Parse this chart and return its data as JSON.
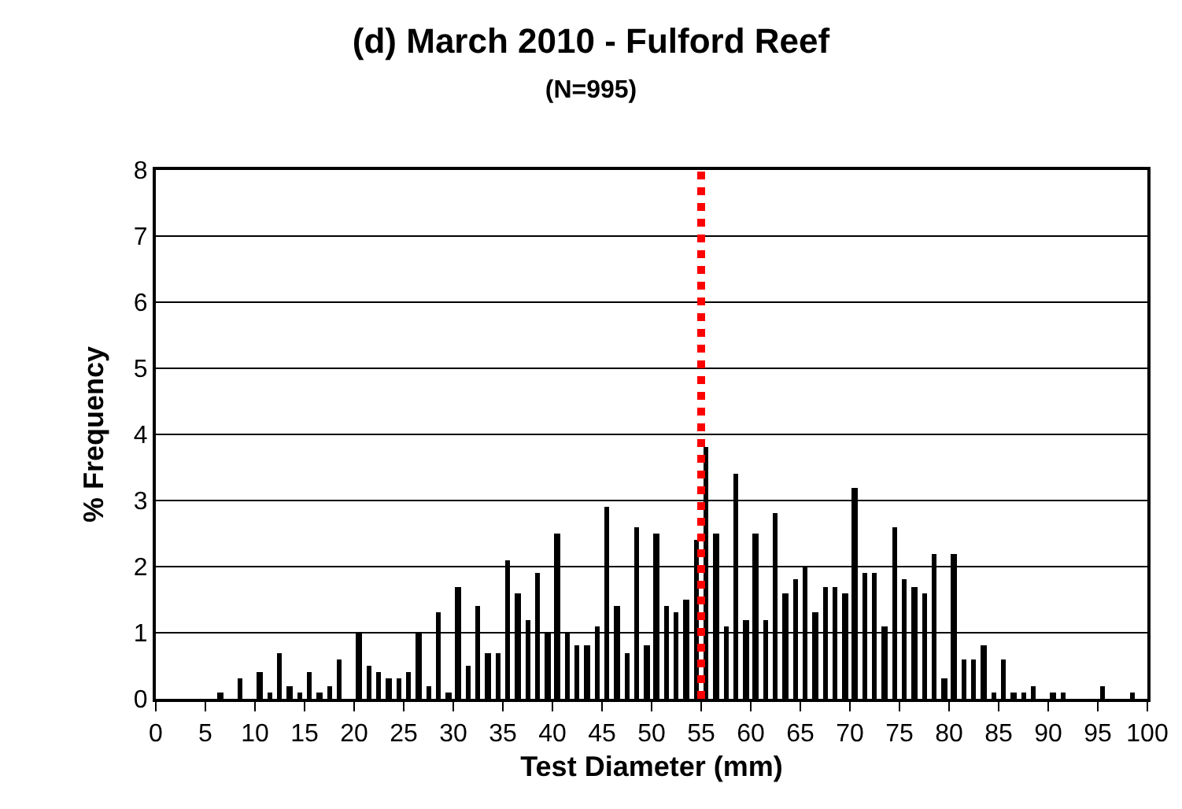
{
  "chart_data": {
    "type": "histogram",
    "title": "(d) March 2010 - Fulford Reef",
    "subtitle": "(N=995)",
    "xlabel": "Test Diameter (mm)",
    "ylabel": "% Frequency",
    "bins": [
      0,
      1,
      2,
      3,
      4,
      5,
      6,
      7,
      8,
      9,
      10,
      11,
      12,
      13,
      14,
      15,
      16,
      17,
      18,
      19,
      20,
      21,
      22,
      23,
      24,
      25,
      26,
      27,
      28,
      29,
      30,
      31,
      32,
      33,
      34,
      35,
      36,
      37,
      38,
      39,
      40,
      41,
      42,
      43,
      44,
      45,
      46,
      47,
      48,
      49,
      50,
      51,
      52,
      53,
      54,
      55,
      56,
      57,
      58,
      59,
      60,
      61,
      62,
      63,
      64,
      65,
      66,
      67,
      68,
      69,
      70,
      71,
      72,
      73,
      74,
      75,
      76,
      77,
      78,
      79,
      80,
      81,
      82,
      83,
      84,
      85,
      86,
      87,
      88,
      89,
      90,
      91,
      92,
      93,
      94,
      95,
      96,
      97,
      98,
      99,
      100
    ],
    "values": [
      0,
      0,
      0,
      0,
      0,
      0,
      0.1,
      0,
      0.3,
      0,
      0.4,
      0.1,
      0.7,
      0.2,
      0.1,
      0.4,
      0.1,
      0.2,
      0.6,
      0,
      1.0,
      0.5,
      0.4,
      0.3,
      0.3,
      0.4,
      1.0,
      0.2,
      1.3,
      0.1,
      1.7,
      0.5,
      1.4,
      0.7,
      0.7,
      2.1,
      1.6,
      1.2,
      1.9,
      1.0,
      2.5,
      1.0,
      0.8,
      0.8,
      1.1,
      2.9,
      1.4,
      0.7,
      2.6,
      0.8,
      2.5,
      1.4,
      1.3,
      1.5,
      2.4,
      3.8,
      2.5,
      1.1,
      3.4,
      1.2,
      2.5,
      1.2,
      2.8,
      1.6,
      1.8,
      2.0,
      1.3,
      1.7,
      1.7,
      1.6,
      3.2,
      1.9,
      1.9,
      1.1,
      2.6,
      1.8,
      1.7,
      1.6,
      2.2,
      0.3,
      2.2,
      0.6,
      0.6,
      0.8,
      0.1,
      0.6,
      0.1,
      0.1,
      0.2,
      0,
      0.1,
      0.1,
      0,
      0,
      0,
      0.2,
      0,
      0,
      0.1,
      0
    ],
    "color": "#000000",
    "xlim": [
      0,
      100
    ],
    "xticks": [
      0,
      5,
      10,
      15,
      20,
      25,
      30,
      35,
      40,
      45,
      50,
      55,
      60,
      65,
      70,
      75,
      80,
      85,
      90,
      95,
      100
    ],
    "ylim": [
      0,
      8
    ],
    "yticks": [
      0,
      1,
      2,
      3,
      4,
      5,
      6,
      7,
      8
    ],
    "grid": "y",
    "ref_lines": [
      {
        "axis": "x",
        "value": 55,
        "color": "#ff0000",
        "line_style": "dotted"
      }
    ]
  }
}
